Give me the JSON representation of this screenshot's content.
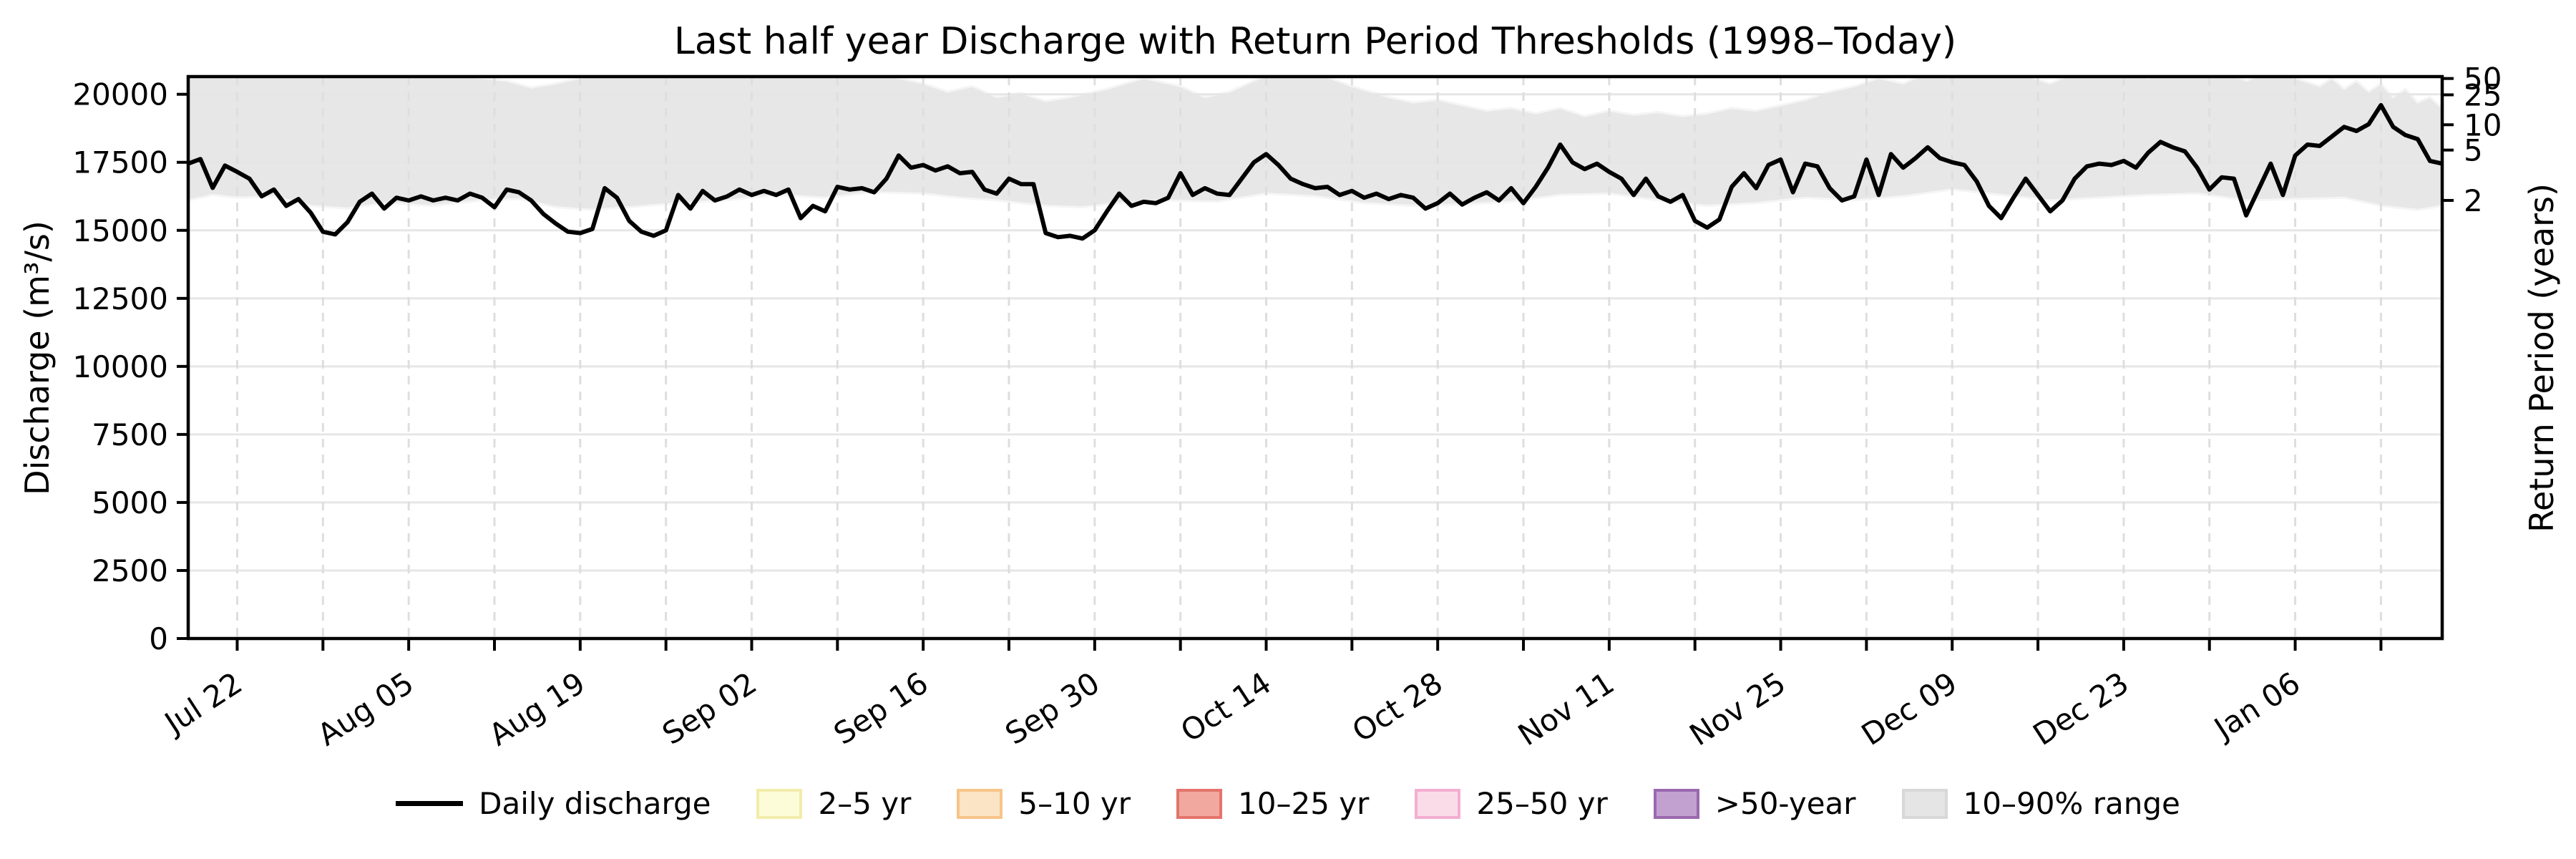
{
  "figure": {
    "title": "Last half year Discharge with Return Period Thresholds (1998–Today)"
  },
  "axes": {
    "ylabel_left": "Discharge (m³/s)",
    "ylabel_right": "Return Period (years)",
    "ylim": [
      0,
      20650
    ],
    "x_range_days": 184,
    "yticks_left": [
      0,
      2500,
      5000,
      7500,
      10000,
      12500,
      15000,
      17500,
      20000
    ],
    "xticks_major": [
      {
        "label": "Jul 22",
        "day": 4
      },
      {
        "label": "Aug 05",
        "day": 18
      },
      {
        "label": "Aug 19",
        "day": 32
      },
      {
        "label": "Sep 02",
        "day": 46
      },
      {
        "label": "Sep 16",
        "day": 60
      },
      {
        "label": "Sep 30",
        "day": 74
      },
      {
        "label": "Oct 14",
        "day": 88
      },
      {
        "label": "Oct 28",
        "day": 102
      },
      {
        "label": "Nov 11",
        "day": 116
      },
      {
        "label": "Nov 25",
        "day": 130
      },
      {
        "label": "Dec 09",
        "day": 144
      },
      {
        "label": "Dec 23",
        "day": 158
      },
      {
        "label": "Jan 06",
        "day": 172
      }
    ],
    "xticks_minor_days": [
      11,
      25,
      39,
      53,
      67,
      81,
      95,
      109,
      123,
      137,
      151,
      165,
      179
    ],
    "right_ticks": [
      {
        "label": "50",
        "discharge": 20580
      },
      {
        "label": "25",
        "discharge": 19980
      },
      {
        "label": "10",
        "discharge": 18880
      },
      {
        "label": "5",
        "discharge": 17950
      },
      {
        "label": "2",
        "discharge": 16100
      }
    ]
  },
  "chart_data": {
    "type": "line",
    "title": "Last half year Discharge with Return Period Thresholds (1998–Today)",
    "xlabel": "",
    "ylabel": "Discharge (m³/s)",
    "ylabel_right": "Return Period (years)",
    "ylim": [
      0,
      20650
    ],
    "grid": true,
    "legend_position": "bottom-center",
    "x_unit": "day index (daily data, 0–184, ticks dated Jul 22 … Jan 06 weekly)",
    "series": [
      {
        "name": "Daily discharge",
        "color": "#000000",
        "values": [
          17450,
          17620,
          16560,
          17380,
          17150,
          16900,
          16250,
          16500,
          15900,
          16150,
          15650,
          14950,
          14850,
          15300,
          16050,
          16350,
          15800,
          16200,
          16100,
          16250,
          16100,
          16200,
          16100,
          16350,
          16200,
          15850,
          16500,
          16400,
          16100,
          15600,
          15250,
          14950,
          14900,
          15050,
          16550,
          16200,
          15350,
          14950,
          14800,
          15000,
          16300,
          15800,
          16450,
          16100,
          16250,
          16500,
          16300,
          16450,
          16300,
          16500,
          15450,
          15900,
          15700,
          16600,
          16500,
          16550,
          16400,
          16900,
          17750,
          17300,
          17400,
          17200,
          17350,
          17100,
          17150,
          16500,
          16350,
          16900,
          16700,
          16700,
          14900,
          14750,
          14800,
          14700,
          15000,
          15700,
          16350,
          15900,
          16050,
          16000,
          16200,
          17100,
          16300,
          16550,
          16350,
          16300,
          16900,
          17500,
          17800,
          17400,
          16900,
          16700,
          16550,
          16600,
          16300,
          16450,
          16200,
          16350,
          16150,
          16300,
          16200,
          15800,
          16000,
          16350,
          15950,
          16200,
          16400,
          16100,
          16550,
          16000,
          16600,
          17300,
          18150,
          17500,
          17250,
          17450,
          17150,
          16900,
          16300,
          16900,
          16250,
          16050,
          16300,
          15350,
          15100,
          15400,
          16600,
          17100,
          16550,
          17400,
          17600,
          16400,
          17450,
          17350,
          16550,
          16100,
          16250,
          17600,
          16300,
          17800,
          17300,
          17650,
          18050,
          17650,
          17500,
          17400,
          16800,
          15900,
          15450,
          16200,
          16900,
          16300,
          15700,
          16100,
          16900,
          17350,
          17450,
          17400,
          17550,
          17300,
          17850,
          18250,
          18050,
          17900,
          17300,
          16500,
          16950,
          16900,
          15550,
          16500,
          17450,
          16300,
          17750,
          18150,
          18100,
          18450,
          18800,
          18650,
          18900,
          19600,
          18800,
          18500,
          18350,
          17550,
          17450
        ]
      }
    ],
    "band_10_90": {
      "name": "10–90% range",
      "fill": "#e7e7e7",
      "edge": "#f5f5f5",
      "lower_anchors": [
        [
          0,
          16100
        ],
        [
          2,
          16300
        ],
        [
          4,
          16200
        ],
        [
          7,
          16250
        ],
        [
          10,
          15900
        ],
        [
          13,
          15800
        ],
        [
          16,
          16000
        ],
        [
          20,
          15900
        ],
        [
          24,
          16100
        ],
        [
          27,
          16150
        ],
        [
          30,
          15850
        ],
        [
          33,
          15750
        ],
        [
          36,
          15850
        ],
        [
          40,
          16000
        ],
        [
          44,
          16100
        ],
        [
          48,
          16300
        ],
        [
          52,
          16200
        ],
        [
          56,
          16400
        ],
        [
          60,
          16350
        ],
        [
          63,
          16200
        ],
        [
          66,
          16100
        ],
        [
          70,
          15900
        ],
        [
          73,
          15850
        ],
        [
          76,
          16000
        ],
        [
          80,
          16100
        ],
        [
          84,
          16050
        ],
        [
          88,
          16350
        ],
        [
          92,
          16250
        ],
        [
          96,
          16000
        ],
        [
          100,
          15900
        ],
        [
          104,
          15950
        ],
        [
          108,
          16050
        ],
        [
          112,
          16300
        ],
        [
          116,
          16350
        ],
        [
          120,
          16100
        ],
        [
          124,
          15900
        ],
        [
          128,
          16000
        ],
        [
          132,
          16200
        ],
        [
          136,
          16100
        ],
        [
          140,
          16250
        ],
        [
          144,
          16500
        ],
        [
          148,
          16300
        ],
        [
          152,
          16100
        ],
        [
          156,
          16200
        ],
        [
          160,
          16300
        ],
        [
          164,
          16350
        ],
        [
          168,
          16100
        ],
        [
          172,
          16150
        ],
        [
          176,
          16200
        ],
        [
          179,
          15900
        ],
        [
          182,
          15750
        ],
        [
          184,
          15900
        ]
      ],
      "upper_anchors": [
        [
          0,
          20800
        ],
        [
          10,
          20900
        ],
        [
          20,
          20800
        ],
        [
          26,
          20500
        ],
        [
          28,
          20250
        ],
        [
          30,
          20400
        ],
        [
          34,
          20800
        ],
        [
          44,
          20900
        ],
        [
          56,
          20800
        ],
        [
          60,
          20400
        ],
        [
          62,
          20100
        ],
        [
          64,
          20300
        ],
        [
          66,
          19900
        ],
        [
          68,
          20050
        ],
        [
          70,
          19750
        ],
        [
          72,
          19900
        ],
        [
          75,
          20200
        ],
        [
          78,
          20600
        ],
        [
          81,
          20300
        ],
        [
          83,
          19900
        ],
        [
          85,
          20100
        ],
        [
          88,
          20700
        ],
        [
          92,
          20800
        ],
        [
          95,
          20300
        ],
        [
          98,
          19900
        ],
        [
          100,
          19700
        ],
        [
          102,
          19800
        ],
        [
          104,
          19600
        ],
        [
          106,
          19400
        ],
        [
          108,
          19500
        ],
        [
          110,
          19300
        ],
        [
          112,
          19500
        ],
        [
          114,
          19200
        ],
        [
          116,
          19400
        ],
        [
          118,
          19250
        ],
        [
          120,
          19350
        ],
        [
          122,
          19200
        ],
        [
          124,
          19300
        ],
        [
          126,
          19500
        ],
        [
          128,
          19400
        ],
        [
          130,
          19600
        ],
        [
          132,
          19800
        ],
        [
          134,
          20100
        ],
        [
          136,
          20300
        ],
        [
          138,
          20600
        ],
        [
          140,
          20400
        ],
        [
          142,
          20800
        ],
        [
          146,
          20900
        ],
        [
          150,
          20700
        ],
        [
          152,
          20400
        ],
        [
          154,
          20800
        ],
        [
          158,
          20900
        ],
        [
          160,
          20600
        ],
        [
          162,
          20900
        ],
        [
          164,
          20700
        ],
        [
          166,
          20900
        ],
        [
          168,
          20500
        ],
        [
          170,
          20900
        ],
        [
          172,
          20600
        ],
        [
          174,
          20300
        ],
        [
          175,
          20600
        ],
        [
          176,
          20200
        ],
        [
          177,
          20500
        ],
        [
          178,
          20100
        ],
        [
          179,
          20400
        ],
        [
          180,
          19900
        ],
        [
          181,
          20200
        ],
        [
          182,
          19700
        ],
        [
          183,
          19900
        ],
        [
          184,
          19500
        ]
      ]
    },
    "return_period_thresholds_discharge": {
      "2": 16100,
      "5": 17950,
      "10": 18880,
      "25": 19980,
      "50": 20580
    }
  },
  "legend": {
    "items": [
      {
        "label": "Daily discharge",
        "type": "line",
        "fill": "#000000",
        "edge": "#000000"
      },
      {
        "label": "2–5 yr",
        "type": "patch",
        "fill": "#fdfcd8",
        "edge": "#f2ecab"
      },
      {
        "label": "5–10 yr",
        "type": "patch",
        "fill": "#fbe3c5",
        "edge": "#f7c489"
      },
      {
        "label": "10–25 yr",
        "type": "patch",
        "fill": "#f1a89f",
        "edge": "#e4746b"
      },
      {
        "label": "25–50 yr",
        "type": "patch",
        "fill": "#fadce8",
        "edge": "#f3aed0"
      },
      {
        "label": ">50-year",
        "type": "patch",
        "fill": "#c2a0d0",
        "edge": "#9a68ae"
      },
      {
        "label": "10–90% range",
        "type": "patch",
        "fill": "#e5e5e5",
        "edge": "#d8d8d8"
      }
    ]
  },
  "style": {
    "line_color": "#000000",
    "line_width": 6,
    "spine_color": "#000000",
    "grid_h_color": "#e6e6e6",
    "grid_v_color": "#dedede",
    "tick_label_color": "#000000"
  }
}
